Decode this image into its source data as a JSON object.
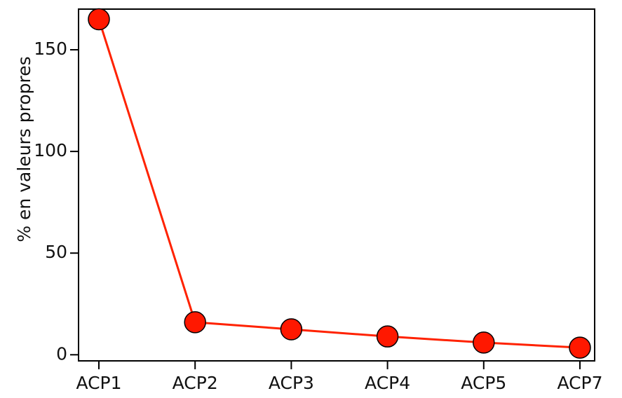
{
  "chart_data": {
    "type": "line",
    "categories": [
      "ACP1",
      "ACP2",
      "ACP3",
      "ACP4",
      "ACP5",
      "ACP7"
    ],
    "series": [
      {
        "values": [
          165,
          16,
          12.5,
          9,
          6,
          3.5
        ],
        "color": "#ff2200"
      }
    ],
    "xlabel": "",
    "ylabel": "% en valeurs propres",
    "ylim": [
      -3,
      170
    ],
    "yticks": [
      0,
      50,
      100,
      150
    ],
    "grid": false,
    "legend": "none",
    "marker": "circle",
    "marker_color": "#ff1800",
    "marker_edge_color": "#000000"
  }
}
